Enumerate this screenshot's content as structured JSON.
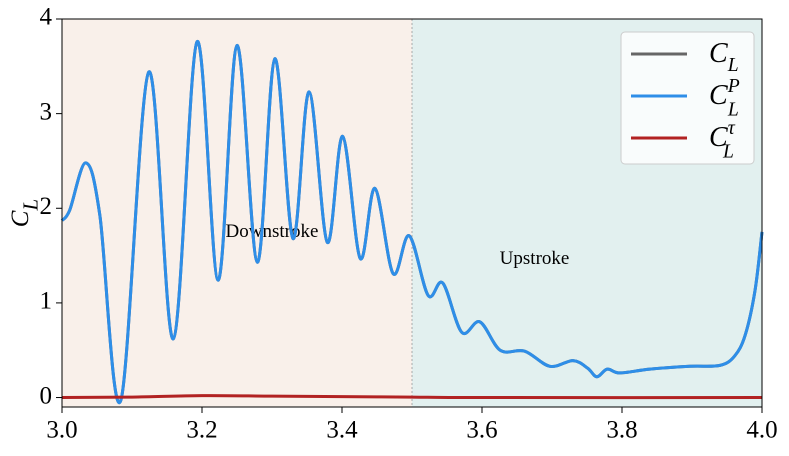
{
  "chart_data": {
    "type": "line",
    "ylabel": "C_L",
    "xlim": [
      3.0,
      4.0
    ],
    "ylim": [
      -0.1,
      4
    ],
    "xticks": [
      {
        "value": 3.0,
        "label": "3.0"
      },
      {
        "value": 3.2,
        "label": "3.2"
      },
      {
        "value": 3.4,
        "label": "3.4"
      },
      {
        "value": 3.6,
        "label": "3.6"
      },
      {
        "value": 3.8,
        "label": "3.8"
      },
      {
        "value": 4.0,
        "label": "4.0"
      }
    ],
    "yticks": [
      0,
      1,
      2,
      3,
      4
    ],
    "legend": "upper right",
    "regions": [
      {
        "label": "Downstroke",
        "xlim": [
          3.0,
          3.5
        ],
        "color": "#f9f0ea"
      },
      {
        "label": "Upstroke",
        "xlim": [
          3.5,
          4.0
        ],
        "color": "#e2f0ef"
      }
    ],
    "series": [
      {
        "name": "C_L",
        "color": "#666666",
        "x": [
          3.0,
          3.011,
          3.034,
          3.054,
          3.084,
          3.124,
          3.159,
          3.193,
          3.223,
          3.25,
          3.279,
          3.304,
          3.33,
          3.353,
          3.379,
          3.401,
          3.426,
          3.447,
          3.473,
          3.496,
          3.523,
          3.544,
          3.571,
          3.597,
          3.626,
          3.661,
          3.697,
          3.73,
          3.751,
          3.764,
          3.779,
          3.797,
          3.84,
          3.897,
          3.94,
          3.961,
          3.976,
          3.99,
          4.0
        ],
        "values": [
          1.87,
          1.98,
          2.48,
          1.93,
          -0.03,
          3.44,
          0.62,
          3.76,
          1.24,
          3.72,
          1.43,
          3.58,
          1.68,
          3.23,
          1.64,
          2.76,
          1.47,
          2.21,
          1.31,
          1.71,
          1.08,
          1.21,
          0.69,
          0.8,
          0.5,
          0.49,
          0.33,
          0.39,
          0.31,
          0.22,
          0.3,
          0.26,
          0.3,
          0.33,
          0.34,
          0.44,
          0.66,
          1.13,
          1.75
        ]
      },
      {
        "name": "C_L^P",
        "color": "#2e8ee8",
        "x": [
          3.0,
          3.011,
          3.034,
          3.054,
          3.084,
          3.124,
          3.159,
          3.193,
          3.223,
          3.25,
          3.279,
          3.304,
          3.33,
          3.353,
          3.379,
          3.401,
          3.426,
          3.447,
          3.473,
          3.496,
          3.523,
          3.544,
          3.571,
          3.597,
          3.626,
          3.661,
          3.697,
          3.73,
          3.751,
          3.764,
          3.779,
          3.797,
          3.84,
          3.897,
          3.94,
          3.961,
          3.976,
          3.99,
          4.0
        ],
        "values": [
          1.87,
          1.98,
          2.48,
          1.93,
          -0.03,
          3.44,
          0.62,
          3.76,
          1.24,
          3.72,
          1.43,
          3.58,
          1.68,
          3.23,
          1.64,
          2.76,
          1.47,
          2.21,
          1.31,
          1.71,
          1.08,
          1.21,
          0.69,
          0.8,
          0.5,
          0.49,
          0.33,
          0.39,
          0.31,
          0.22,
          0.3,
          0.26,
          0.3,
          0.33,
          0.34,
          0.44,
          0.66,
          1.13,
          1.75
        ]
      },
      {
        "name": "C_L^τ",
        "color": "#b22222",
        "x": [
          3.0,
          3.1,
          3.2,
          3.3,
          3.4,
          3.5,
          3.6,
          4.0
        ],
        "values": [
          0.0,
          0.005,
          0.02,
          0.015,
          0.01,
          0.005,
          0.0,
          0.0
        ]
      }
    ]
  }
}
